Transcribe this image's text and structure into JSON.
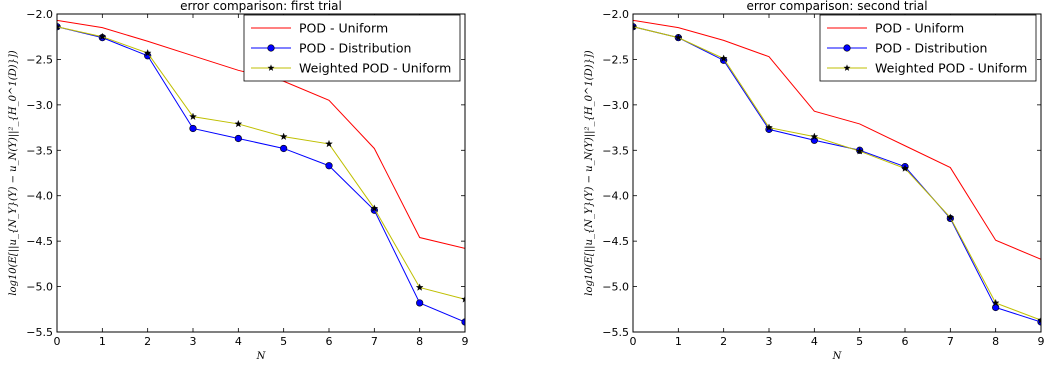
{
  "chart_data": [
    {
      "type": "line",
      "title": "error comparison: first trial",
      "xlabel": "N",
      "ylabel": "log10(E[||u_{N_Y}(Y) − u_N(Y)||²_{H_0^1(D)}])",
      "xlim": [
        0,
        9
      ],
      "ylim": [
        -5.5,
        -2.0
      ],
      "x_ticks": [
        "0",
        "1",
        "2",
        "3",
        "4",
        "5",
        "6",
        "7",
        "8",
        "9"
      ],
      "y_ticks": [
        "−2.0",
        "−2.5",
        "−3.0",
        "−3.5",
        "−4.0",
        "−4.5",
        "−5.0",
        "−5.5"
      ],
      "legend_position": "top-right",
      "x": [
        0,
        1,
        2,
        3,
        4,
        5,
        6,
        7,
        8,
        9
      ],
      "series": [
        {
          "name": "POD - Uniform",
          "color": "#ff0000",
          "marker": "none",
          "values": [
            -2.07,
            -2.15,
            -2.3,
            -2.46,
            -2.62,
            -2.74,
            -2.95,
            -3.48,
            -4.46,
            -4.58
          ]
        },
        {
          "name": "POD - Distribution",
          "color": "#0000ff",
          "marker": "circle",
          "values": [
            -2.14,
            -2.26,
            -2.46,
            -3.26,
            -3.37,
            -3.48,
            -3.67,
            -4.16,
            -5.18,
            -5.39
          ]
        },
        {
          "name": "Weighted POD - Uniform",
          "color": "#bfbf00",
          "marker": "star",
          "values": [
            -2.14,
            -2.25,
            -2.43,
            -3.13,
            -3.21,
            -3.35,
            -3.43,
            -4.14,
            -5.01,
            -5.14
          ]
        }
      ]
    },
    {
      "type": "line",
      "title": "error comparison: second trial",
      "xlabel": "N",
      "ylabel": "log10(E[||u_{N_Y}(Y) − u_N(Y)||²_{H_0^1(D)}])",
      "xlim": [
        0,
        9
      ],
      "ylim": [
        -5.5,
        -2.0
      ],
      "x_ticks": [
        "0",
        "1",
        "2",
        "3",
        "4",
        "5",
        "6",
        "7",
        "8",
        "9"
      ],
      "y_ticks": [
        "−2.0",
        "−2.5",
        "−3.0",
        "−3.5",
        "−4.0",
        "−4.5",
        "−5.0",
        "−5.5"
      ],
      "legend_position": "top-right",
      "x": [
        0,
        1,
        2,
        3,
        4,
        5,
        6,
        7,
        8,
        9
      ],
      "series": [
        {
          "name": "POD - Uniform",
          "color": "#ff0000",
          "marker": "none",
          "values": [
            -2.07,
            -2.15,
            -2.29,
            -2.47,
            -3.07,
            -3.21,
            -3.45,
            -3.69,
            -4.49,
            -4.7
          ]
        },
        {
          "name": "POD - Distribution",
          "color": "#0000ff",
          "marker": "circle",
          "values": [
            -2.14,
            -2.26,
            -2.51,
            -3.27,
            -3.39,
            -3.5,
            -3.68,
            -4.25,
            -5.23,
            -5.39
          ]
        },
        {
          "name": "Weighted POD - Uniform",
          "color": "#bfbf00",
          "marker": "star",
          "values": [
            -2.14,
            -2.26,
            -2.49,
            -3.25,
            -3.35,
            -3.51,
            -3.7,
            -4.24,
            -5.18,
            -5.37
          ]
        }
      ]
    }
  ]
}
